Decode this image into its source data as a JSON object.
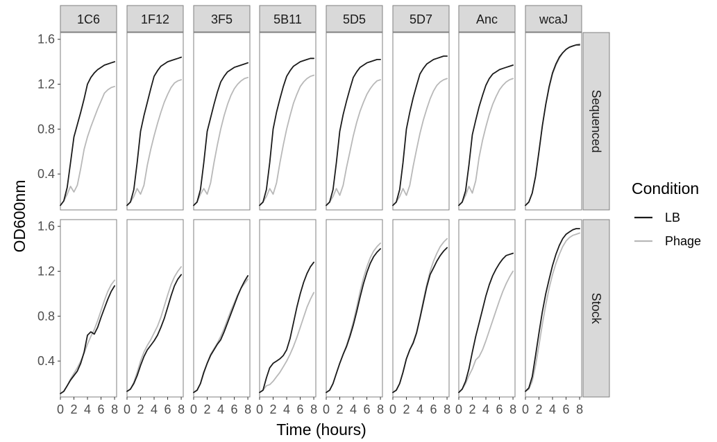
{
  "chart_data": {
    "type": "line",
    "xlabel": "Time (hours)",
    "ylabel": "OD600nm",
    "xlim": [
      0,
      8.3
    ],
    "ylim": [
      0.08,
      1.66
    ],
    "x_ticks": [
      0,
      2,
      4,
      6,
      8
    ],
    "y_ticks": [
      0.4,
      0.8,
      1.2,
      1.6
    ],
    "y_tick_labels": [
      "0.4",
      "0.8",
      "1.2",
      "1.6"
    ],
    "grid": false,
    "columns": [
      "1C6",
      "1F12",
      "3F5",
      "5B11",
      "5D5",
      "5D7",
      "Anc",
      "wcaJ"
    ],
    "rows": [
      "Sequenced",
      "Stock"
    ],
    "legend": {
      "title": "Condition",
      "position": "right",
      "entries": [
        {
          "label": "LB",
          "color": "#1a1a1a"
        },
        {
          "label": "Phage",
          "color": "#b8b8b8"
        }
      ]
    },
    "colors": {
      "LB": "#1a1a1a",
      "Phage": "#b8b8b8",
      "strip_bg": "#d9d9d9",
      "panel_border": "#7f7f7f"
    },
    "x": [
      0,
      0.5,
      1,
      1.5,
      2,
      2.5,
      3,
      3.5,
      4,
      4.5,
      5,
      5.5,
      6,
      6.5,
      7,
      7.5,
      8
    ],
    "panels": [
      {
        "row": "Sequenced",
        "col": "1C6",
        "series": [
          {
            "name": "LB",
            "values": [
              0.12,
              0.16,
              0.28,
              0.5,
              0.73,
              0.84,
              0.95,
              1.07,
              1.2,
              1.26,
              1.3,
              1.33,
              1.35,
              1.37,
              1.38,
              1.39,
              1.4
            ]
          },
          {
            "name": "Phage",
            "values": [
              0.12,
              0.16,
              0.22,
              0.29,
              0.24,
              0.3,
              0.45,
              0.62,
              0.73,
              0.82,
              0.9,
              0.98,
              1.05,
              1.12,
              1.15,
              1.17,
              1.18
            ]
          }
        ]
      },
      {
        "row": "Sequenced",
        "col": "1F12",
        "series": [
          {
            "name": "LB",
            "values": [
              0.12,
              0.15,
              0.26,
              0.5,
              0.78,
              0.92,
              1.04,
              1.16,
              1.27,
              1.32,
              1.36,
              1.38,
              1.4,
              1.41,
              1.42,
              1.43,
              1.44
            ]
          },
          {
            "name": "Phage",
            "values": [
              0.12,
              0.15,
              0.2,
              0.27,
              0.22,
              0.3,
              0.48,
              0.62,
              0.74,
              0.85,
              0.95,
              1.04,
              1.11,
              1.17,
              1.21,
              1.23,
              1.24
            ]
          }
        ]
      },
      {
        "row": "Sequenced",
        "col": "3F5",
        "series": [
          {
            "name": "LB",
            "values": [
              0.12,
              0.15,
              0.26,
              0.5,
              0.78,
              0.9,
              1.02,
              1.13,
              1.22,
              1.27,
              1.31,
              1.33,
              1.35,
              1.36,
              1.37,
              1.38,
              1.39
            ]
          },
          {
            "name": "Phage",
            "values": [
              0.12,
              0.15,
              0.22,
              0.27,
              0.22,
              0.32,
              0.5,
              0.66,
              0.8,
              0.92,
              1.02,
              1.1,
              1.16,
              1.2,
              1.23,
              1.25,
              1.26
            ]
          }
        ]
      },
      {
        "row": "Sequenced",
        "col": "5B11",
        "series": [
          {
            "name": "LB",
            "values": [
              0.12,
              0.15,
              0.26,
              0.5,
              0.8,
              0.95,
              1.07,
              1.18,
              1.27,
              1.32,
              1.36,
              1.38,
              1.4,
              1.41,
              1.42,
              1.43,
              1.43
            ]
          },
          {
            "name": "Phage",
            "values": [
              0.12,
              0.15,
              0.2,
              0.27,
              0.22,
              0.32,
              0.5,
              0.66,
              0.8,
              0.92,
              1.03,
              1.11,
              1.18,
              1.22,
              1.25,
              1.27,
              1.28
            ]
          }
        ]
      },
      {
        "row": "Sequenced",
        "col": "5D5",
        "series": [
          {
            "name": "LB",
            "values": [
              0.12,
              0.15,
              0.26,
              0.5,
              0.78,
              0.93,
              1.05,
              1.16,
              1.26,
              1.31,
              1.35,
              1.37,
              1.39,
              1.4,
              1.41,
              1.42,
              1.42
            ]
          },
          {
            "name": "Phage",
            "values": [
              0.12,
              0.15,
              0.2,
              0.27,
              0.21,
              0.3,
              0.46,
              0.6,
              0.74,
              0.86,
              0.96,
              1.04,
              1.11,
              1.16,
              1.2,
              1.23,
              1.24
            ]
          }
        ]
      },
      {
        "row": "Sequenced",
        "col": "5D7",
        "series": [
          {
            "name": "LB",
            "values": [
              0.12,
              0.15,
              0.26,
              0.5,
              0.8,
              0.95,
              1.08,
              1.19,
              1.29,
              1.34,
              1.38,
              1.4,
              1.42,
              1.43,
              1.44,
              1.45,
              1.45
            ]
          },
          {
            "name": "Phage",
            "values": [
              0.12,
              0.15,
              0.2,
              0.27,
              0.21,
              0.3,
              0.47,
              0.62,
              0.76,
              0.88,
              0.98,
              1.07,
              1.14,
              1.19,
              1.22,
              1.24,
              1.25
            ]
          }
        ]
      },
      {
        "row": "Sequenced",
        "col": "Anc",
        "series": [
          {
            "name": "LB",
            "values": [
              0.12,
              0.15,
              0.25,
              0.48,
              0.75,
              0.88,
              1.0,
              1.1,
              1.19,
              1.25,
              1.29,
              1.31,
              1.33,
              1.34,
              1.35,
              1.36,
              1.37
            ]
          },
          {
            "name": "Phage",
            "values": [
              0.12,
              0.15,
              0.21,
              0.29,
              0.23,
              0.34,
              0.55,
              0.7,
              0.82,
              0.93,
              1.02,
              1.09,
              1.15,
              1.19,
              1.22,
              1.24,
              1.25
            ]
          }
        ]
      },
      {
        "row": "Sequenced",
        "col": "wcaJ",
        "series": [
          {
            "name": "LB",
            "values": [
              0.12,
              0.15,
              0.23,
              0.38,
              0.6,
              0.83,
              1.02,
              1.18,
              1.3,
              1.38,
              1.44,
              1.48,
              1.51,
              1.53,
              1.54,
              1.55,
              1.55
            ]
          },
          {
            "name": "Phage",
            "values": [
              0.12,
              0.15,
              0.23,
              0.38,
              0.6,
              0.83,
              1.02,
              1.17,
              1.29,
              1.37,
              1.43,
              1.48,
              1.51,
              1.53,
              1.54,
              1.55,
              1.56
            ]
          }
        ]
      },
      {
        "row": "Stock",
        "col": "1C6",
        "series": [
          {
            "name": "LB",
            "values": [
              0.11,
              0.13,
              0.18,
              0.23,
              0.27,
              0.31,
              0.38,
              0.48,
              0.63,
              0.66,
              0.64,
              0.7,
              0.79,
              0.87,
              0.95,
              1.02,
              1.07
            ]
          },
          {
            "name": "Phage",
            "values": [
              0.11,
              0.13,
              0.18,
              0.24,
              0.29,
              0.34,
              0.4,
              0.47,
              0.55,
              0.62,
              0.68,
              0.76,
              0.85,
              0.94,
              1.02,
              1.08,
              1.12
            ]
          }
        ]
      },
      {
        "row": "Stock",
        "col": "1F12",
        "series": [
          {
            "name": "LB",
            "values": [
              0.13,
              0.15,
              0.2,
              0.27,
              0.36,
              0.44,
              0.5,
              0.54,
              0.58,
              0.63,
              0.7,
              0.78,
              0.88,
              0.98,
              1.07,
              1.13,
              1.17
            ]
          },
          {
            "name": "Phage",
            "values": [
              0.13,
              0.15,
              0.21,
              0.3,
              0.4,
              0.48,
              0.54,
              0.59,
              0.65,
              0.71,
              0.79,
              0.89,
              0.99,
              1.08,
              1.15,
              1.2,
              1.24
            ]
          }
        ]
      },
      {
        "row": "Stock",
        "col": "3F5",
        "series": [
          {
            "name": "LB",
            "values": [
              0.12,
              0.14,
              0.2,
              0.3,
              0.38,
              0.45,
              0.5,
              0.55,
              0.59,
              0.66,
              0.74,
              0.82,
              0.9,
              0.98,
              1.05,
              1.11,
              1.16
            ]
          },
          {
            "name": "Phage",
            "values": [
              0.12,
              0.14,
              0.2,
              0.29,
              0.38,
              0.46,
              0.51,
              0.56,
              0.62,
              0.69,
              0.77,
              0.85,
              0.92,
              0.99,
              1.05,
              1.09,
              1.13
            ]
          }
        ]
      },
      {
        "row": "Stock",
        "col": "5B11",
        "series": [
          {
            "name": "LB",
            "values": [
              0.12,
              0.14,
              0.25,
              0.34,
              0.38,
              0.4,
              0.42,
              0.45,
              0.5,
              0.6,
              0.74,
              0.88,
              1.0,
              1.1,
              1.18,
              1.24,
              1.28
            ]
          },
          {
            "name": "Phage",
            "values": [
              0.12,
              0.14,
              0.18,
              0.19,
              0.22,
              0.26,
              0.3,
              0.35,
              0.4,
              0.46,
              0.53,
              0.61,
              0.7,
              0.79,
              0.88,
              0.95,
              1.01
            ]
          }
        ]
      },
      {
        "row": "Stock",
        "col": "5D5",
        "series": [
          {
            "name": "LB",
            "values": [
              0.12,
              0.14,
              0.2,
              0.29,
              0.38,
              0.46,
              0.53,
              0.62,
              0.72,
              0.84,
              0.97,
              1.09,
              1.19,
              1.27,
              1.33,
              1.37,
              1.4
            ]
          },
          {
            "name": "Phage",
            "values": [
              0.12,
              0.14,
              0.2,
              0.29,
              0.38,
              0.46,
              0.54,
              0.64,
              0.75,
              0.88,
              1.02,
              1.14,
              1.24,
              1.32,
              1.38,
              1.42,
              1.45
            ]
          }
        ]
      },
      {
        "row": "Stock",
        "col": "5D7",
        "series": [
          {
            "name": "LB",
            "values": [
              0.12,
              0.14,
              0.2,
              0.3,
              0.42,
              0.5,
              0.56,
              0.65,
              0.78,
              0.92,
              1.06,
              1.17,
              1.23,
              1.29,
              1.34,
              1.38,
              1.41
            ]
          },
          {
            "name": "Phage",
            "values": [
              0.12,
              0.14,
              0.2,
              0.3,
              0.42,
              0.5,
              0.57,
              0.66,
              0.79,
              0.94,
              1.08,
              1.2,
              1.29,
              1.36,
              1.42,
              1.46,
              1.49
            ]
          }
        ]
      },
      {
        "row": "Stock",
        "col": "Anc",
        "series": [
          {
            "name": "LB",
            "values": [
              0.12,
              0.15,
              0.22,
              0.33,
              0.48,
              0.62,
              0.74,
              0.86,
              0.98,
              1.08,
              1.16,
              1.22,
              1.27,
              1.31,
              1.34,
              1.35,
              1.36
            ]
          },
          {
            "name": "Phage",
            "values": [
              0.12,
              0.15,
              0.2,
              0.27,
              0.33,
              0.41,
              0.44,
              0.5,
              0.58,
              0.67,
              0.76,
              0.85,
              0.94,
              1.02,
              1.09,
              1.15,
              1.2
            ]
          }
        ]
      },
      {
        "row": "Stock",
        "col": "wcaJ",
        "series": [
          {
            "name": "LB",
            "values": [
              0.13,
              0.16,
              0.26,
              0.45,
              0.65,
              0.84,
              1.0,
              1.13,
              1.25,
              1.35,
              1.43,
              1.49,
              1.53,
              1.55,
              1.57,
              1.58,
              1.58
            ]
          },
          {
            "name": "Phage",
            "values": [
              0.13,
              0.15,
              0.22,
              0.36,
              0.54,
              0.73,
              0.9,
              1.05,
              1.17,
              1.27,
              1.35,
              1.42,
              1.47,
              1.5,
              1.52,
              1.53,
              1.54
            ]
          }
        ]
      }
    ]
  }
}
